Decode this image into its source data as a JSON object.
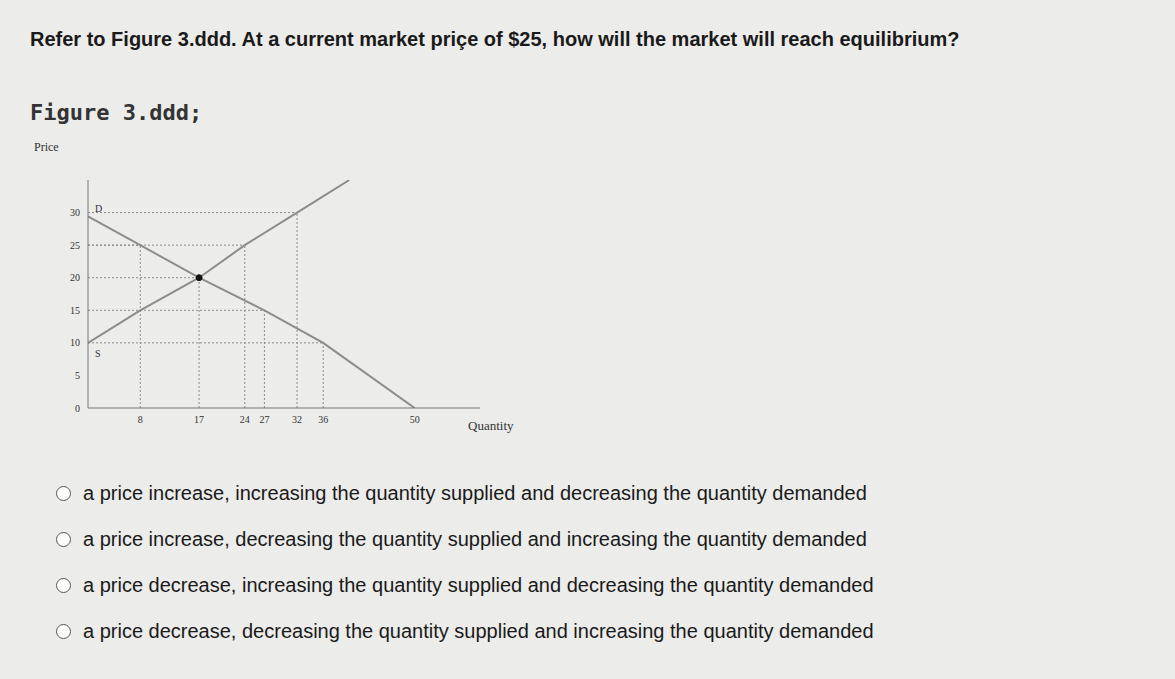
{
  "question": "Refer to Figure 3.ddd. At a current market priçe of $25, how will the market will reach equilibrium?",
  "figure_title": "Figure 3.ddd;",
  "chart_data": {
    "type": "line",
    "x_label": "Quantity",
    "y_label": "Price",
    "xlim": [
      0,
      60
    ],
    "ylim": [
      0,
      35
    ],
    "xticks": [
      8,
      17,
      24,
      27,
      32,
      36,
      50
    ],
    "yticks": [
      0,
      5,
      10,
      15,
      20,
      25,
      30
    ],
    "series": [
      {
        "name": "D",
        "color": "#8c8c8c",
        "x": [
          0,
          8,
          17,
          27,
          36,
          50
        ],
        "values": [
          29.4,
          25,
          20,
          15,
          10,
          0
        ]
      },
      {
        "name": "S",
        "color": "#8c8c8c",
        "x": [
          0,
          8,
          17,
          24,
          32,
          40
        ],
        "values": [
          10,
          15,
          20,
          25,
          30,
          35
        ]
      }
    ],
    "guides": [
      {
        "x": 32,
        "y": 30
      },
      {
        "x": 24,
        "y": 25
      },
      {
        "x": 8,
        "y": 25
      },
      {
        "x": 17,
        "y": 20
      },
      {
        "x": 27,
        "y": 15
      },
      {
        "x": 36,
        "y": 10
      }
    ],
    "equilibrium": {
      "x": 17,
      "y": 20
    }
  },
  "options": [
    "a price increase, increasing the quantity supplied and decreasing the quantity demanded",
    "a price increase, decreasing the quantity supplied and increasing the quantity demanded",
    "a price decrease, increasing the quantity supplied and decreasing the quantity demanded",
    "a price decrease, decreasing the quantity supplied and increasing the quantity demanded"
  ]
}
